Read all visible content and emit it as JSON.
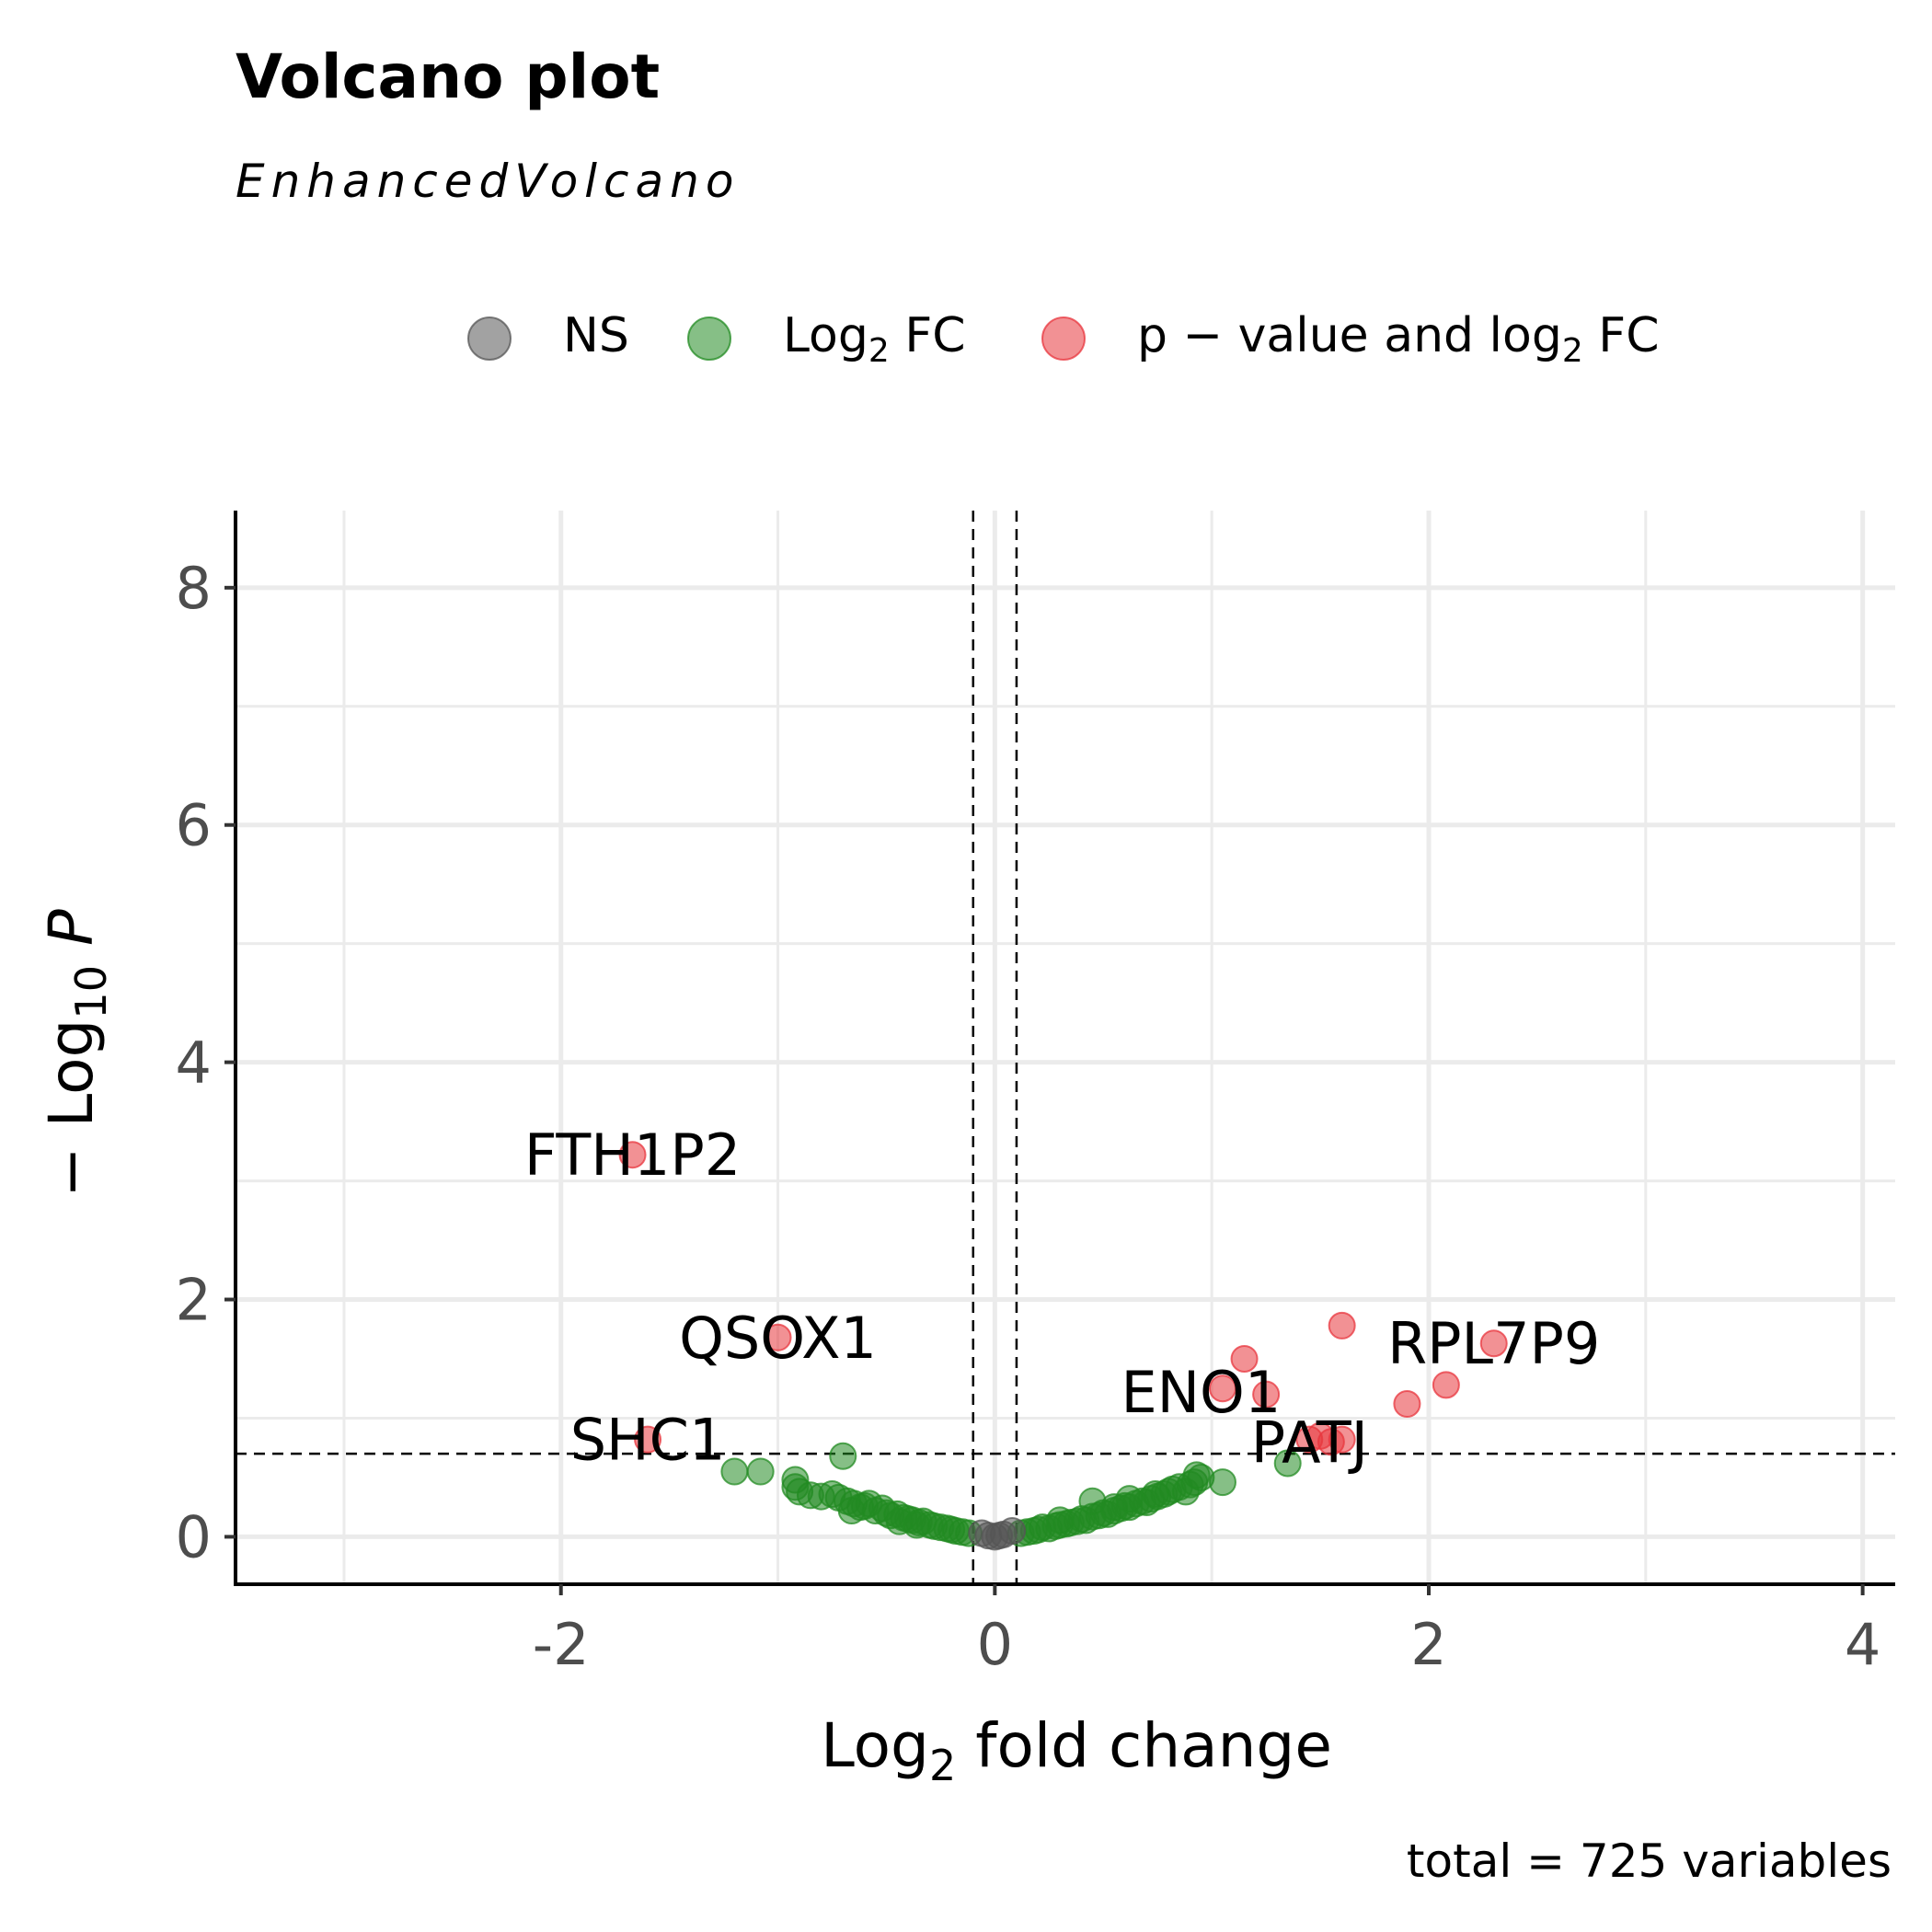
{
  "chart_data": {
    "type": "scatter",
    "title": "Volcano plot",
    "subtitle": "EnhancedVolcano",
    "xlabel": {
      "pre": "Log",
      "sub": "2",
      "post": " fold change"
    },
    "ylabel": {
      "pre": "− Log",
      "sub": "10",
      "post": " P"
    },
    "caption": "total = 725 variables",
    "xlim": [
      -3.5,
      4.15
    ],
    "ylim": [
      -0.4,
      8.65
    ],
    "x_ticks": [
      -2,
      0,
      2,
      4
    ],
    "x_tick_labels": [
      "-2",
      "0",
      "2",
      "4"
    ],
    "y_ticks": [
      0,
      2,
      4,
      6,
      8
    ],
    "y_tick_labels": [
      "0",
      "2",
      "4",
      "6",
      "8"
    ],
    "grid": true,
    "legend_position": "top",
    "legend": [
      {
        "key": "ns",
        "pre": "NS",
        "sub": "",
        "post": ""
      },
      {
        "key": "fc",
        "pre": "Log",
        "sub": "2",
        "post": " FC"
      },
      {
        "key": "pfc",
        "pre": "p − value and log",
        "sub": "2",
        "post": " FC"
      }
    ],
    "cutoffs": {
      "log2fc": [
        -0.1,
        0.1
      ],
      "neg_log10_p": 0.7
    },
    "colors": {
      "ns": "#555555",
      "fc": "#228b22",
      "pfc": "#e8363d"
    },
    "series": [
      {
        "name": "NS",
        "points": [
          [
            0.0,
            0.0
          ],
          [
            -0.03,
            0.01
          ],
          [
            0.04,
            0.02
          ],
          [
            0.08,
            0.05
          ],
          [
            -0.06,
            0.03
          ],
          [
            0.02,
            0.01
          ]
        ]
      },
      {
        "name": "Log2 FC",
        "points": [
          [
            -1.2,
            0.55
          ],
          [
            -1.08,
            0.55
          ],
          [
            -0.92,
            0.48
          ],
          [
            -0.7,
            0.68
          ],
          [
            -0.92,
            0.42
          ],
          [
            -0.9,
            0.38
          ],
          [
            -0.85,
            0.35
          ],
          [
            -0.8,
            0.34
          ],
          [
            -0.75,
            0.36
          ],
          [
            -0.72,
            0.33
          ],
          [
            -0.68,
            0.3
          ],
          [
            -0.65,
            0.28
          ],
          [
            -0.6,
            0.26
          ],
          [
            -0.58,
            0.28
          ],
          [
            -0.55,
            0.22
          ],
          [
            -0.52,
            0.24
          ],
          [
            -0.5,
            0.2
          ],
          [
            -0.48,
            0.18
          ],
          [
            -0.45,
            0.19
          ],
          [
            -0.42,
            0.16
          ],
          [
            -0.4,
            0.15
          ],
          [
            -0.38,
            0.14
          ],
          [
            -0.35,
            0.12
          ],
          [
            -0.33,
            0.13
          ],
          [
            -0.3,
            0.1
          ],
          [
            -0.28,
            0.09
          ],
          [
            -0.25,
            0.08
          ],
          [
            -0.22,
            0.07
          ],
          [
            -0.2,
            0.06
          ],
          [
            -0.18,
            0.05
          ],
          [
            -0.15,
            0.04
          ],
          [
            -0.12,
            0.03
          ],
          [
            -0.62,
            0.25
          ],
          [
            -0.66,
            0.22
          ],
          [
            -0.44,
            0.13
          ],
          [
            -0.36,
            0.1
          ],
          [
            0.12,
            0.03
          ],
          [
            0.15,
            0.04
          ],
          [
            0.18,
            0.05
          ],
          [
            0.2,
            0.06
          ],
          [
            0.22,
            0.08
          ],
          [
            0.25,
            0.07
          ],
          [
            0.28,
            0.09
          ],
          [
            0.3,
            0.1
          ],
          [
            0.33,
            0.11
          ],
          [
            0.35,
            0.12
          ],
          [
            0.38,
            0.13
          ],
          [
            0.4,
            0.15
          ],
          [
            0.42,
            0.14
          ],
          [
            0.45,
            0.17
          ],
          [
            0.48,
            0.18
          ],
          [
            0.5,
            0.2
          ],
          [
            0.52,
            0.19
          ],
          [
            0.55,
            0.22
          ],
          [
            0.58,
            0.24
          ],
          [
            0.6,
            0.26
          ],
          [
            0.62,
            0.25
          ],
          [
            0.65,
            0.28
          ],
          [
            0.68,
            0.3
          ],
          [
            0.7,
            0.29
          ],
          [
            0.72,
            0.32
          ],
          [
            0.75,
            0.34
          ],
          [
            0.78,
            0.36
          ],
          [
            0.8,
            0.38
          ],
          [
            0.82,
            0.4
          ],
          [
            0.85,
            0.42
          ],
          [
            0.88,
            0.38
          ],
          [
            0.9,
            0.44
          ],
          [
            0.92,
            0.46
          ],
          [
            0.95,
            0.5
          ],
          [
            0.93,
            0.52
          ],
          [
            1.05,
            0.46
          ],
          [
            1.35,
            0.62
          ],
          [
            0.45,
            0.3
          ],
          [
            0.55,
            0.25
          ],
          [
            0.3,
            0.14
          ],
          [
            0.74,
            0.36
          ],
          [
            0.62,
            0.32
          ]
        ]
      },
      {
        "name": "p-value and log2 FC",
        "points": [
          [
            -1.67,
            3.22
          ],
          [
            -1.0,
            1.68
          ],
          [
            -1.6,
            0.82
          ],
          [
            1.15,
            1.5
          ],
          [
            1.05,
            1.25
          ],
          [
            1.25,
            1.2
          ],
          [
            1.45,
            0.82
          ],
          [
            1.5,
            0.85
          ],
          [
            1.55,
            0.8
          ],
          [
            1.6,
            0.82
          ],
          [
            1.6,
            1.78
          ],
          [
            1.9,
            1.12
          ],
          [
            2.08,
            1.28
          ],
          [
            2.3,
            1.63
          ]
        ]
      }
    ],
    "labels": [
      {
        "text": "FTH1P2",
        "x": -1.67,
        "y": 3.22
      },
      {
        "text": "QSOX1",
        "x": -1.0,
        "y": 1.68
      },
      {
        "text": "SHC1",
        "x": -1.6,
        "y": 0.82
      },
      {
        "text": "ENO1",
        "x": 0.95,
        "y": 1.22
      },
      {
        "text": "PATJ",
        "x": 1.45,
        "y": 0.8
      },
      {
        "text": "RPL7P9",
        "x": 2.3,
        "y": 1.63
      }
    ]
  }
}
